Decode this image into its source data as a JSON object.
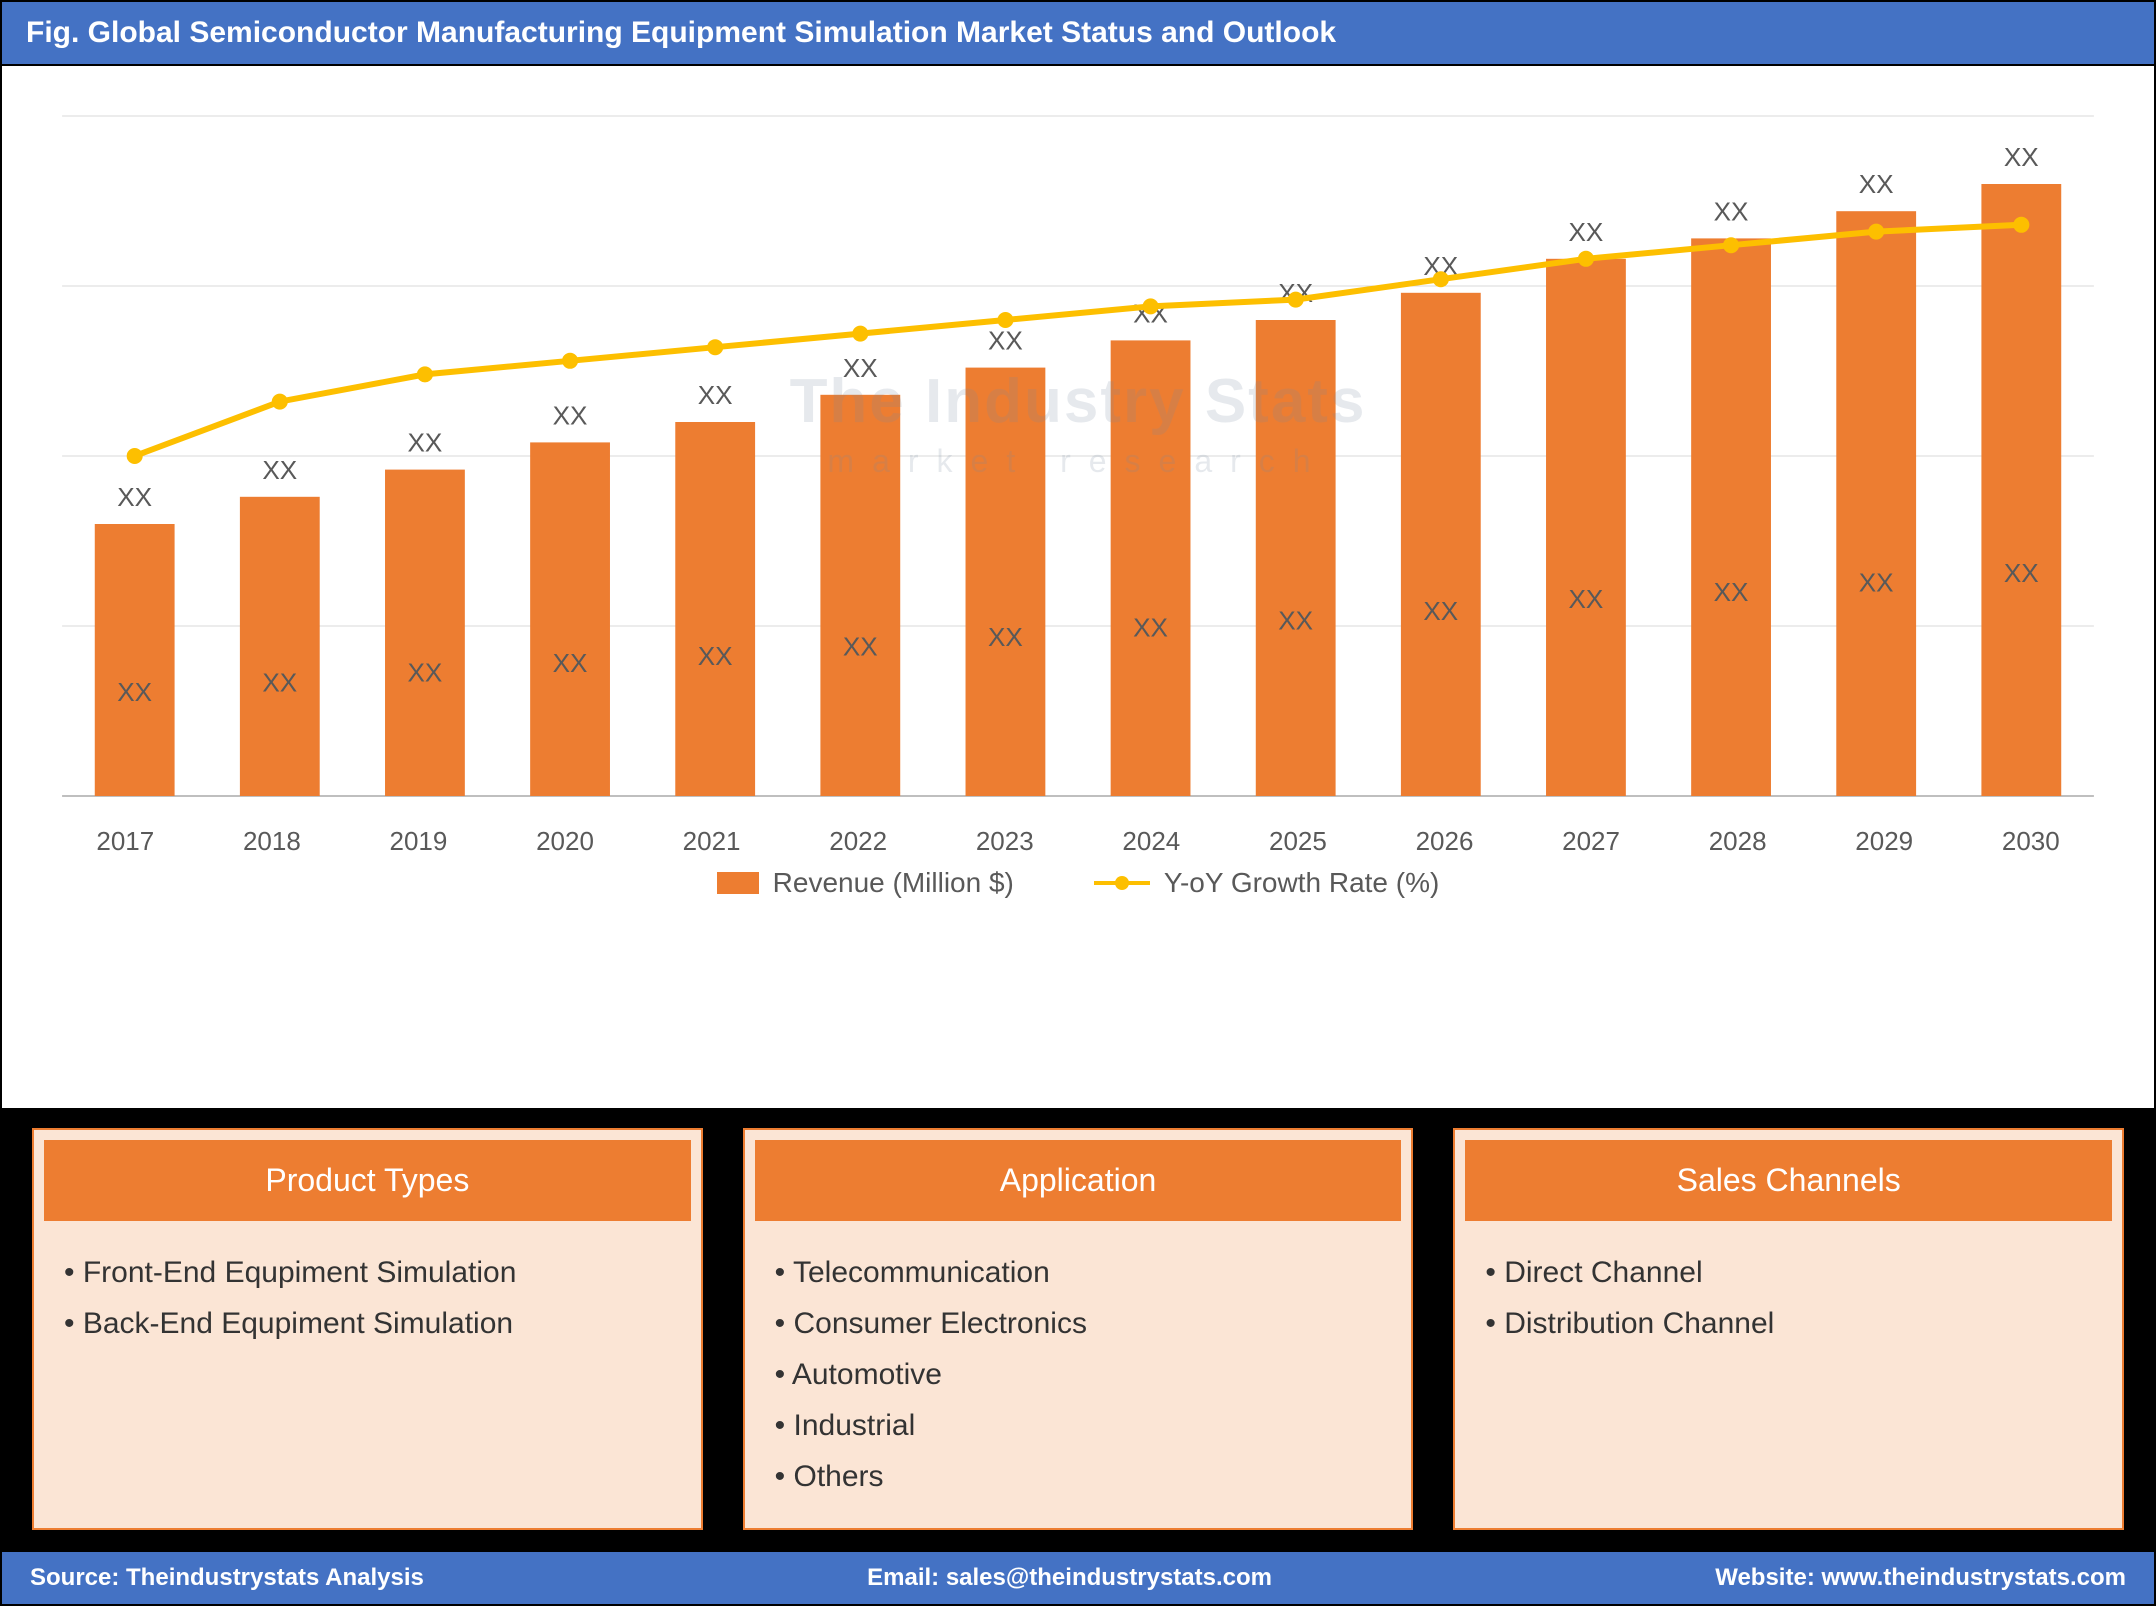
{
  "title": "Fig. Global Semiconductor Manufacturing Equipment Simulation Market Status and Outlook",
  "chart": {
    "type": "bar+line",
    "years": [
      "2017",
      "2018",
      "2019",
      "2020",
      "2021",
      "2022",
      "2023",
      "2024",
      "2025",
      "2026",
      "2027",
      "2028",
      "2029",
      "2030"
    ],
    "bar_values_rel": [
      40,
      44,
      48,
      52,
      55,
      59,
      63,
      67,
      70,
      74,
      79,
      82,
      86,
      90
    ],
    "bar_top_labels": [
      "XX",
      "XX",
      "XX",
      "XX",
      "XX",
      "XX",
      "XX",
      "XX",
      "XX",
      "XX",
      "XX",
      "XX",
      "XX",
      "XX"
    ],
    "bar_bottom_labels": [
      "XX",
      "XX",
      "XX",
      "XX",
      "XX",
      "XX",
      "XX",
      "XX",
      "XX",
      "XX",
      "XX",
      "XX",
      "XX",
      "XX"
    ],
    "line_values_rel": [
      50,
      58,
      62,
      64,
      66,
      68,
      70,
      72,
      73,
      76,
      79,
      81,
      83,
      84
    ],
    "bar_color": "#ed7d31",
    "line_color": "#fdbf00",
    "marker_color": "#fdbf00",
    "gridline_color": "#d9d9d9",
    "axis_font_color": "#595959",
    "bar_label_color_top": "#595959",
    "bar_label_color_bottom": "#595959",
    "background_color": "#ffffff",
    "ylim": [
      0,
      100
    ],
    "bar_width": 0.55,
    "line_width": 6,
    "marker_radius": 8,
    "label_fontsize": 26,
    "axis_fontsize": 26
  },
  "legend": {
    "bar_label": "Revenue (Million $)",
    "line_label": "Y-oY Growth Rate (%)"
  },
  "watermark": {
    "main": "The Industry Stats",
    "sub": "market research"
  },
  "cards": [
    {
      "title": "Product Types",
      "items": [
        "Front-End Equpiment Simulation",
        "Back-End Equpiment Simulation"
      ]
    },
    {
      "title": "Application",
      "items": [
        "Telecommunication",
        "Consumer Electronics",
        "Automotive",
        "Industrial",
        "Others"
      ]
    },
    {
      "title": "Sales Channels",
      "items": [
        "Direct Channel",
        "Distribution Channel"
      ]
    }
  ],
  "footer": {
    "source_label": "Source: Theindustrystats Analysis",
    "email_label": "Email: sales@theindustrystats.com",
    "website_label": "Website: www.theindustrystats.com"
  }
}
